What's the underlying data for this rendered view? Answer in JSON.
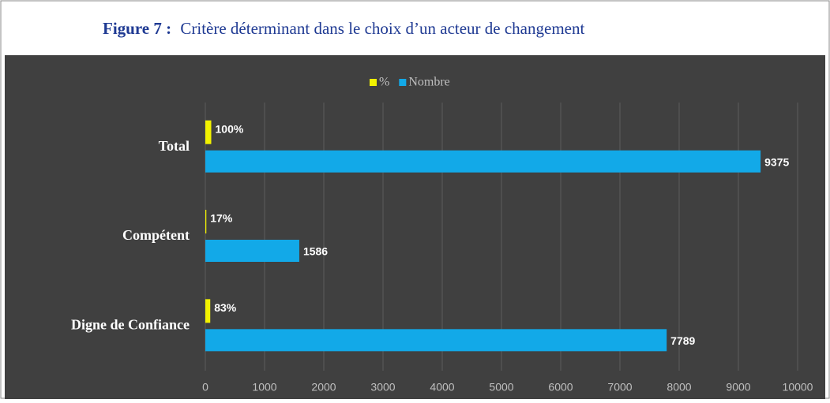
{
  "chart_data": {
    "type": "hbar",
    "title_label": "Figure 7 :",
    "title": "Critère déterminant dans le choix d’un acteur de changement",
    "categories": [
      "Total",
      "Compétent",
      "Digne de Confiance"
    ],
    "series": [
      {
        "name": "%",
        "color": "#f2f200",
        "values": [
          100,
          17,
          83
        ],
        "value_labels": [
          "100%",
          "17%",
          "83%"
        ]
      },
      {
        "name": "Nombre",
        "color": "#12a9e8",
        "values": [
          9375,
          1586,
          7789
        ]
      }
    ],
    "xlim": [
      0,
      10000
    ],
    "xticks": [
      0,
      1000,
      2000,
      3000,
      4000,
      5000,
      6000,
      7000,
      8000,
      9000,
      10000
    ],
    "grid": true,
    "legend": "top"
  }
}
